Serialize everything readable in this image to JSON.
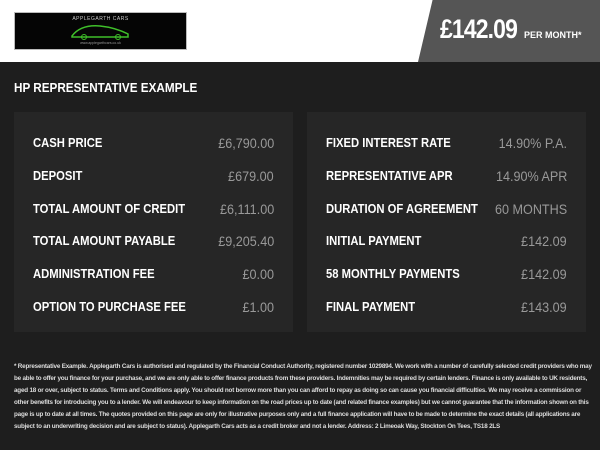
{
  "header": {
    "logo": {
      "name": "APPLEGARTH CARS",
      "url": "www.applegarthcars.co.uk"
    },
    "price": "£142.09",
    "per_month": "PER MONTH*"
  },
  "section_title": "HP REPRESENTATIVE EXAMPLE",
  "colors": {
    "label": "#ffffff",
    "value": "#999999",
    "panel": "#262626",
    "background": "#1e1e1e",
    "price_box": "#555555",
    "logo_accent": "#3fbf2a"
  },
  "left_panel": [
    {
      "label": "CASH PRICE",
      "value": "£6,790.00"
    },
    {
      "label": "DEPOSIT",
      "value": "£679.00"
    },
    {
      "label": "TOTAL AMOUNT OF CREDIT",
      "value": "£6,111.00"
    },
    {
      "label": "TOTAL AMOUNT PAYABLE",
      "value": "£9,205.40"
    },
    {
      "label": "ADMINISTRATION FEE",
      "value": "£0.00"
    },
    {
      "label": "OPTION TO PURCHASE FEE",
      "value": "£1.00"
    }
  ],
  "right_panel": [
    {
      "label": "FIXED INTEREST RATE",
      "value": "14.90% P.A."
    },
    {
      "label": "REPRESENTATIVE APR",
      "value": "14.90% APR"
    },
    {
      "label": "DURATION OF AGREEMENT",
      "value": "60 MONTHS"
    },
    {
      "label": "INITIAL PAYMENT",
      "value": "£142.09"
    },
    {
      "label": "58 MONTHLY PAYMENTS",
      "value": "£142.09"
    },
    {
      "label": "FINAL PAYMENT",
      "value": "£143.09"
    }
  ],
  "disclaimer": "* Representative Example. Applegarth Cars is authorised and regulated by the Financial Conduct Authority, registered number 1029894. We work with a number of carefully selected credit providers who may be able to offer you finance for your purchase, and we are only able to offer finance products from these providers. Indemnities may be required by certain lenders. Finance is only available to UK residents, aged 18 or over, subject to status. Terms and Conditions apply. You should not borrow more than you can afford to repay as doing so can cause you financial difficulties. We may receive a commission or other benefits for introducing you to a lender. We will endeavour to keep information on the road prices up to date (and related finance examples) but we cannot guarantee that the information shown on this page is up to date at all times. The quotes provided on this page are only for illustrative purposes only and a full finance application will have to be made to determine the exact details (all applications are subject to an underwriting decision and are subject to status). Applegarth Cars acts as a credit broker and not a lender. Address: 2 Limeoak Way, Stockton On Tees, TS18 2LS"
}
